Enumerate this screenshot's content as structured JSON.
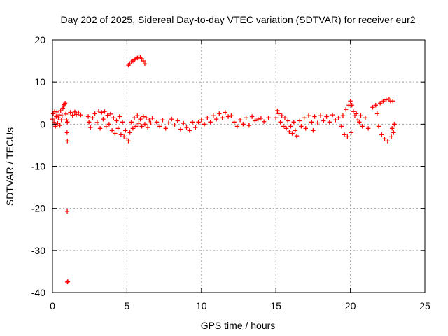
{
  "chart_data": {
    "type": "scatter",
    "title": "Day 202 of 2025, Sidereal Day-to-day VTEC variation (SDTVAR) for receiver eur2",
    "xlabel": "GPS time / hours",
    "ylabel": "SDTVAR / TECUs",
    "xlim": [
      0,
      25
    ],
    "ylim": [
      -40,
      20
    ],
    "xticks": [
      0,
      5,
      10,
      15,
      20,
      25
    ],
    "yticks": [
      -40,
      -30,
      -20,
      -10,
      0,
      10,
      20
    ],
    "grid": true,
    "marker": "+",
    "color": "#ff0000",
    "series": [
      {
        "name": "SDTVAR",
        "points": [
          [
            0.0,
            1.2
          ],
          [
            0.05,
            2.5
          ],
          [
            0.1,
            0.4
          ],
          [
            0.15,
            3.0
          ],
          [
            0.2,
            -0.5
          ],
          [
            0.25,
            1.8
          ],
          [
            0.3,
            2.9
          ],
          [
            0.35,
            0.2
          ],
          [
            0.4,
            1.5
          ],
          [
            0.45,
            2.2
          ],
          [
            0.5,
            -0.3
          ],
          [
            0.55,
            3.2
          ],
          [
            0.6,
            1.0
          ],
          [
            0.65,
            2.0
          ],
          [
            0.7,
            3.8
          ],
          [
            0.75,
            4.3
          ],
          [
            0.8,
            4.6
          ],
          [
            0.85,
            5.0
          ],
          [
            0.9,
            2.4
          ],
          [
            0.95,
            1.0
          ],
          [
            1.0,
            0.5
          ],
          [
            0.98,
            -2.0
          ],
          [
            1.0,
            -4.0
          ],
          [
            0.99,
            -20.7
          ],
          [
            1.0,
            -37.5
          ],
          [
            1.03,
            -37.4
          ],
          [
            1.2,
            2.8
          ],
          [
            1.35,
            2.1
          ],
          [
            1.5,
            2.9
          ],
          [
            1.6,
            2.3
          ],
          [
            1.75,
            2.7
          ],
          [
            1.9,
            2.2
          ],
          [
            2.4,
            1.8
          ],
          [
            2.45,
            0.5
          ],
          [
            2.55,
            -0.8
          ],
          [
            2.7,
            1.5
          ],
          [
            2.85,
            2.5
          ],
          [
            3.0,
            0.4
          ],
          [
            3.1,
            3.1
          ],
          [
            3.2,
            -1.0
          ],
          [
            3.3,
            2.8
          ],
          [
            3.4,
            1.2
          ],
          [
            3.5,
            3.0
          ],
          [
            3.6,
            -0.6
          ],
          [
            3.7,
            2.1
          ],
          [
            3.8,
            0.0
          ],
          [
            3.9,
            2.4
          ],
          [
            4.0,
            -1.5
          ],
          [
            4.1,
            1.5
          ],
          [
            4.2,
            -2.2
          ],
          [
            4.3,
            0.8
          ],
          [
            4.4,
            -1.0
          ],
          [
            4.5,
            1.8
          ],
          [
            4.6,
            -2.5
          ],
          [
            4.7,
            0.5
          ],
          [
            4.8,
            -3.0
          ],
          [
            4.9,
            -1.5
          ],
          [
            5.0,
            -3.5
          ],
          [
            5.1,
            -4.0
          ],
          [
            5.2,
            -2.0
          ],
          [
            5.3,
            0.5
          ],
          [
            5.4,
            -1.0
          ],
          [
            5.5,
            1.5
          ],
          [
            5.6,
            -0.5
          ],
          [
            5.7,
            2.0
          ],
          [
            5.8,
            0.2
          ],
          [
            5.9,
            1.2
          ],
          [
            6.0,
            -0.5
          ],
          [
            6.1,
            1.8
          ],
          [
            6.2,
            0.0
          ],
          [
            6.3,
            1.5
          ],
          [
            6.4,
            -0.8
          ],
          [
            6.5,
            1.0
          ],
          [
            6.6,
            0.3
          ],
          [
            6.7,
            1.4
          ],
          [
            5.1,
            14.0
          ],
          [
            5.2,
            14.3
          ],
          [
            5.3,
            14.8
          ],
          [
            5.4,
            15.0
          ],
          [
            5.5,
            15.3
          ],
          [
            5.6,
            15.5
          ],
          [
            5.7,
            15.7
          ],
          [
            5.8,
            15.8
          ],
          [
            5.9,
            15.9
          ],
          [
            6.0,
            15.5
          ],
          [
            6.1,
            15.0
          ],
          [
            6.2,
            14.3
          ],
          [
            7.0,
            0.5
          ],
          [
            7.2,
            -0.5
          ],
          [
            7.4,
            1.0
          ],
          [
            7.6,
            -1.0
          ],
          [
            7.8,
            0.3
          ],
          [
            8.0,
            1.2
          ],
          [
            8.2,
            -0.2
          ],
          [
            8.4,
            0.8
          ],
          [
            8.6,
            -1.2
          ],
          [
            8.8,
            0.2
          ],
          [
            9.0,
            -0.8
          ],
          [
            9.2,
            -1.5
          ],
          [
            9.4,
            0.5
          ],
          [
            9.6,
            -0.8
          ],
          [
            9.8,
            0.5
          ],
          [
            10.0,
            1.0
          ],
          [
            10.2,
            0.0
          ],
          [
            10.4,
            1.5
          ],
          [
            10.6,
            0.5
          ],
          [
            10.8,
            2.0
          ],
          [
            11.0,
            1.2
          ],
          [
            11.2,
            2.5
          ],
          [
            11.4,
            1.5
          ],
          [
            11.6,
            2.8
          ],
          [
            11.8,
            1.8
          ],
          [
            12.0,
            2.0
          ],
          [
            12.2,
            0.5
          ],
          [
            12.4,
            -0.5
          ],
          [
            12.6,
            1.0
          ],
          [
            12.8,
            0.0
          ],
          [
            13.0,
            1.5
          ],
          [
            13.2,
            -0.3
          ],
          [
            13.4,
            1.8
          ],
          [
            13.6,
            0.8
          ],
          [
            13.8,
            1.2
          ],
          [
            14.0,
            1.4
          ],
          [
            14.2,
            0.6
          ],
          [
            14.5,
            1.5
          ],
          [
            15.0,
            1.5
          ],
          [
            15.1,
            3.2
          ],
          [
            15.2,
            2.5
          ],
          [
            15.3,
            0.5
          ],
          [
            15.4,
            2.0
          ],
          [
            15.5,
            -0.5
          ],
          [
            15.6,
            1.5
          ],
          [
            15.7,
            -1.0
          ],
          [
            15.8,
            0.8
          ],
          [
            15.9,
            -1.8
          ],
          [
            16.0,
            -0.5
          ],
          [
            16.1,
            -2.2
          ],
          [
            16.2,
            0.5
          ],
          [
            16.3,
            -1.5
          ],
          [
            16.4,
            -2.8
          ],
          [
            16.6,
            0.8
          ],
          [
            16.7,
            -0.5
          ],
          [
            16.9,
            1.5
          ],
          [
            17.0,
            -1.0
          ],
          [
            17.2,
            2.0
          ],
          [
            17.4,
            0.5
          ],
          [
            17.5,
            -1.5
          ],
          [
            17.6,
            1.8
          ],
          [
            17.8,
            0.3
          ],
          [
            18.0,
            2.0
          ],
          [
            18.2,
            0.8
          ],
          [
            18.4,
            1.8
          ],
          [
            18.6,
            0.5
          ],
          [
            18.8,
            2.2
          ],
          [
            19.0,
            1.0
          ],
          [
            19.2,
            1.5
          ],
          [
            19.4,
            -0.5
          ],
          [
            19.5,
            2.0
          ],
          [
            19.6,
            -2.5
          ],
          [
            19.7,
            3.5
          ],
          [
            19.8,
            -3.0
          ],
          [
            19.9,
            4.5
          ],
          [
            20.0,
            5.5
          ],
          [
            20.05,
            -2.0
          ],
          [
            20.1,
            4.5
          ],
          [
            20.2,
            3.0
          ],
          [
            20.3,
            2.0
          ],
          [
            20.4,
            2.5
          ],
          [
            20.5,
            1.0
          ],
          [
            20.6,
            0.5
          ],
          [
            20.7,
            2.0
          ],
          [
            20.8,
            -0.5
          ],
          [
            21.0,
            1.5
          ],
          [
            21.2,
            -1.0
          ],
          [
            21.5,
            4.0
          ],
          [
            21.7,
            4.5
          ],
          [
            21.8,
            2.5
          ],
          [
            21.9,
            -0.5
          ],
          [
            22.0,
            5.0
          ],
          [
            22.1,
            -2.5
          ],
          [
            22.2,
            5.5
          ],
          [
            22.3,
            -3.5
          ],
          [
            22.4,
            5.8
          ],
          [
            22.5,
            -4.0
          ],
          [
            22.6,
            6.0
          ],
          [
            22.7,
            5.5
          ],
          [
            22.75,
            -3.0
          ],
          [
            22.8,
            -1.0
          ],
          [
            22.85,
            5.5
          ],
          [
            22.9,
            -2.0
          ],
          [
            22.95,
            0.0
          ]
        ]
      }
    ]
  }
}
